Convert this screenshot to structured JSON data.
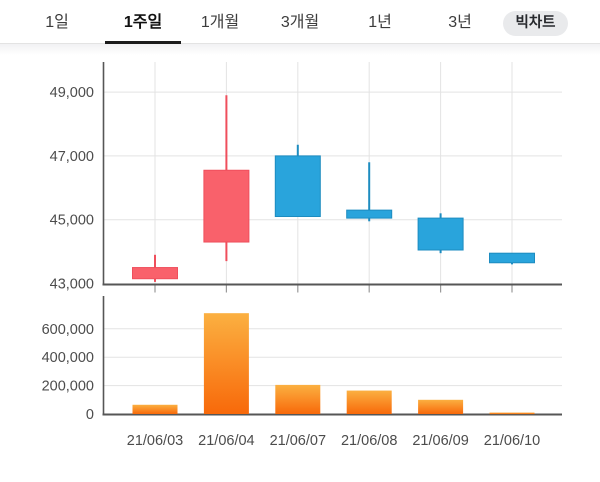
{
  "header": {
    "tabs": [
      {
        "label": "1일",
        "active": false
      },
      {
        "label": "1주일",
        "active": true
      },
      {
        "label": "1개월",
        "active": false
      },
      {
        "label": "3개월",
        "active": false
      },
      {
        "label": "1년",
        "active": false
      },
      {
        "label": "3년",
        "active": false
      }
    ],
    "big_chart_button": "빅차트"
  },
  "chart_data": {
    "type": "candlestick_with_volume",
    "categories": [
      "21/06/03",
      "21/06/04",
      "21/06/07",
      "21/06/08",
      "21/06/09",
      "21/06/10"
    ],
    "candles": [
      {
        "date": "21/06/03",
        "open": 43150,
        "high": 43900,
        "low": 43050,
        "close": 43500,
        "direction": "up"
      },
      {
        "date": "21/06/04",
        "open": 44300,
        "high": 48900,
        "low": 43700,
        "close": 46550,
        "direction": "up"
      },
      {
        "date": "21/06/07",
        "open": 47000,
        "high": 47350,
        "low": 45100,
        "close": 45100,
        "direction": "down"
      },
      {
        "date": "21/06/08",
        "open": 45300,
        "high": 46800,
        "low": 44950,
        "close": 45050,
        "direction": "down"
      },
      {
        "date": "21/06/09",
        "open": 45050,
        "high": 45200,
        "low": 43950,
        "close": 44050,
        "direction": "down"
      },
      {
        "date": "21/06/10",
        "open": 43950,
        "high": 43950,
        "low": 43600,
        "close": 43650,
        "direction": "down"
      }
    ],
    "volume": [
      65000,
      710000,
      205000,
      165000,
      100000,
      10000
    ],
    "price_axis": {
      "ticks": [
        49000,
        47000,
        45000,
        43000
      ],
      "tick_labels": [
        "49,000",
        "47,000",
        "45,000",
        "43,000"
      ],
      "min": 43000,
      "max": 49500
    },
    "volume_axis": {
      "ticks": [
        600000,
        400000,
        200000,
        0
      ],
      "tick_labels": [
        "600,000",
        "400,000",
        "200,000",
        "0"
      ],
      "min": 0,
      "max": 750000
    },
    "grid": true,
    "legend": "none",
    "title": ""
  },
  "colors": {
    "up_fill": "#f9616b",
    "up_border": "#ef4f5c",
    "down_fill": "#29a4dc",
    "down_border": "#1d8cc0",
    "volume_gradient_top": "#fbb041",
    "volume_gradient_bottom": "#f8690a",
    "grid_line": "#e3e3e3",
    "axis_line": "#565656",
    "axis_label": "#4c4c4c",
    "active_tab_underline": "#1b1b1b",
    "big_chart_button_bg": "#e9eaec"
  }
}
